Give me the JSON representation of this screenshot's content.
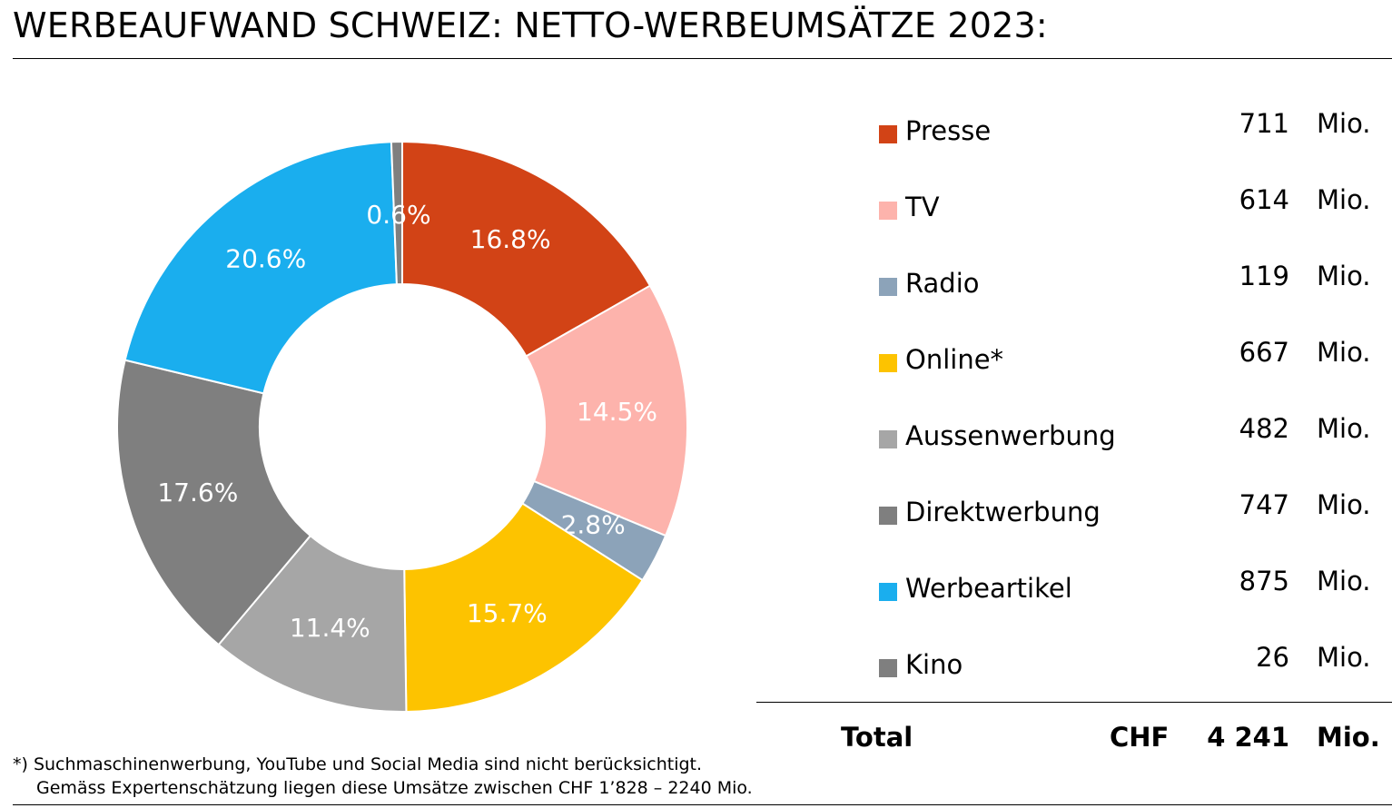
{
  "title": "WERBEAUFWAND SCHWEIZ: NETTO-WERBEUMSÄTZE 2023:",
  "chart_data": {
    "type": "pie",
    "variant": "donut",
    "legend_placement": "right",
    "slices": [
      {
        "name": "Presse",
        "value": 711,
        "label": "16.8%",
        "color": "#D24316",
        "unit": "Mio."
      },
      {
        "name": "TV",
        "value": 614,
        "label": "14.5%",
        "color": "#FDB3AC",
        "unit": "Mio."
      },
      {
        "name": "Radio",
        "value": 119,
        "label": "2.8%",
        "color": "#8CA3B9",
        "unit": "Mio."
      },
      {
        "name": "Online*",
        "value": 667,
        "label": "15.7%",
        "color": "#FDC300",
        "unit": "Mio."
      },
      {
        "name": "Aussenwerbung",
        "value": 482,
        "label": "11.4%",
        "color": "#A6A6A6",
        "unit": "Mio."
      },
      {
        "name": "Direktwerbung",
        "value": 747,
        "label": "17.6%",
        "color": "#7F7F7F",
        "unit": "Mio."
      },
      {
        "name": "Werbeartikel",
        "value": 875,
        "label": "20.6%",
        "color": "#1AAEEE",
        "unit": "Mio."
      },
      {
        "name": "Kino",
        "value": 26,
        "label": "0.6%",
        "color": "#7F7F7F",
        "unit": "Mio."
      }
    ],
    "total": {
      "label": "Total",
      "currency": "CHF",
      "value": "4 241",
      "unit": "Mio."
    }
  },
  "footnote": {
    "line1": "*) Suchmaschinenwerbung, YouTube und Social Media sind nicht berücksichtigt.",
    "line2": "Gemäss Expertenschätzung liegen diese Umsätze zwischen CHF 1’828 – 2240 Mio."
  }
}
